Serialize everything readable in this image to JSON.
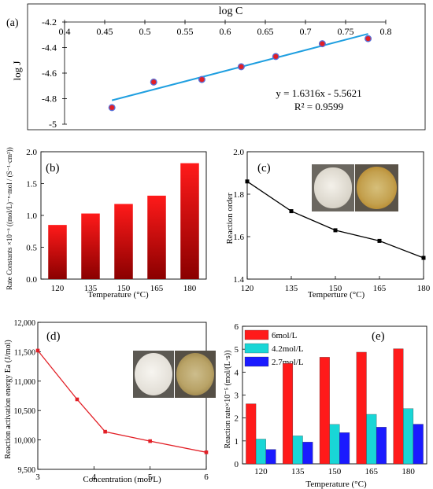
{
  "panels": [
    {
      "id": "a",
      "panel_label": "(a)",
      "xlabel": "log C",
      "ylabel": "log J",
      "equation": "y = 1.6316x - 5.5621",
      "r2": "R² = 0.9599",
      "xtick_labels": [
        "0.4",
        "0.45",
        "0.5",
        "0.55",
        "0.6",
        "0.65",
        "0.7",
        "0.75",
        "0.8"
      ],
      "ytick_labels": [
        "-4.2",
        "-4.4",
        "-4.6",
        "-4.8",
        "-5"
      ],
      "colors": {
        "points": "#e21f26",
        "point_edge": "#5a6fd6",
        "fit": "#1f9fe0"
      }
    },
    {
      "id": "b",
      "panel_label": "(b)",
      "xlabel": "Temperature (°C)",
      "ylabel": "Rate Constants ×10⁻⁶ ((mol/L)⁻ⁿ·mol / (S⁻¹·cm²))",
      "xtick_labels": [
        "120",
        "135",
        "150",
        "165",
        "180"
      ],
      "ytick_labels": [
        "0.0",
        "0.5",
        "1.0",
        "1.5",
        "2.0"
      ],
      "colors": {
        "bar_top": "#ff1a1a",
        "bar_bottom": "#8a0000"
      }
    },
    {
      "id": "c",
      "panel_label": "(c)",
      "xlabel": "Temperture (°C)",
      "ylabel": "Reaction order",
      "xtick_labels": [
        "120",
        "135",
        "150",
        "165",
        "180"
      ],
      "ytick_labels": [
        "1.4",
        "1.6",
        "1.8",
        "2.0"
      ],
      "colors": {
        "line": "#000000"
      }
    },
    {
      "id": "d",
      "panel_label": "(d)",
      "xlabel": "Concentration (mol/L)",
      "ylabel": "Reaction activation energy Ea (J/mol)",
      "xtick_labels": [
        "3",
        "4",
        "5",
        "6"
      ],
      "ytick_labels": [
        "9,500",
        "10,000",
        "10,500",
        "11,000",
        "11,500",
        "12,000"
      ],
      "colors": {
        "line": "#e21f26"
      }
    },
    {
      "id": "e",
      "panel_label": "(e)",
      "xlabel": "Temperature (°C)",
      "ylabel": "Reaction rate×10⁻⁵ (mol/(L·s))",
      "xtick_labels": [
        "120",
        "135",
        "150",
        "165",
        "180"
      ],
      "ytick_labels": [
        "0",
        "1",
        "2",
        "3",
        "4",
        "5",
        "6"
      ],
      "legend": [
        "6mol/L",
        "4.2mol/L",
        "2.7mol/L"
      ],
      "colors": {
        "s1": "#ff1a1a",
        "s2": "#19d6d6",
        "s3": "#1a1aff"
      }
    }
  ],
  "chart_data": [
    {
      "type": "scatter",
      "title": "",
      "xlabel": "log C",
      "ylabel": "log J",
      "xlim": [
        0.4,
        0.8
      ],
      "ylim": [
        -5,
        -4.2
      ],
      "x_axis_position": "top",
      "series": [
        {
          "x": [
            0.459,
            0.511,
            0.571,
            0.62,
            0.663,
            0.721,
            0.778
          ],
          "y": [
            -4.87,
            -4.67,
            -4.65,
            -4.55,
            -4.47,
            -4.37,
            -4.33
          ]
        }
      ],
      "trendline": {
        "type": "linear",
        "slope": 1.6316,
        "intercept": -5.5621,
        "r2": 0.9599,
        "x_range": [
          0.459,
          0.778
        ]
      }
    },
    {
      "type": "bar",
      "title": "",
      "xlabel": "Temperature (°C)",
      "ylabel": "Rate Constants ×10⁻⁶ ((mol/L)⁻ⁿ·mol / (S⁻¹·cm²))",
      "categories": [
        "120",
        "135",
        "150",
        "165",
        "180"
      ],
      "values": [
        0.85,
        1.03,
        1.18,
        1.31,
        1.82
      ],
      "ylim": [
        0,
        2.0
      ]
    },
    {
      "type": "line",
      "title": "",
      "xlabel": "Temperture (°C)",
      "ylabel": "Reaction order",
      "x": [
        120,
        135,
        150,
        165,
        180
      ],
      "values": [
        1.86,
        1.72,
        1.63,
        1.58,
        1.5
      ],
      "xlim": [
        120,
        180
      ],
      "ylim": [
        1.4,
        2.0
      ]
    },
    {
      "type": "line",
      "title": "",
      "xlabel": "Concentration (mol/L)",
      "ylabel": "Reaction activation energy Ea (J/mol)",
      "x": [
        3,
        3.7,
        4.2,
        5,
        6
      ],
      "values": [
        11520,
        10690,
        10140,
        9980,
        9790
      ],
      "xlim": [
        3,
        6
      ],
      "ylim": [
        9500,
        12000
      ]
    },
    {
      "type": "bar",
      "title": "",
      "xlabel": "Temperature (°C)",
      "ylabel": "Reaction rate×10⁻⁵ (mol/(L·s))",
      "categories": [
        "120",
        "135",
        "150",
        "165",
        "180"
      ],
      "series": [
        {
          "name": "6mol/L",
          "values": [
            2.62,
            4.38,
            4.65,
            4.87,
            5.02
          ]
        },
        {
          "name": "4.2mol/L",
          "values": [
            1.08,
            1.22,
            1.72,
            2.16,
            2.41
          ]
        },
        {
          "name": "2.7mol/L",
          "values": [
            0.63,
            0.95,
            1.36,
            1.6,
            1.73
          ]
        }
      ],
      "ylim": [
        0,
        6
      ],
      "legend_position": "top-left"
    }
  ]
}
